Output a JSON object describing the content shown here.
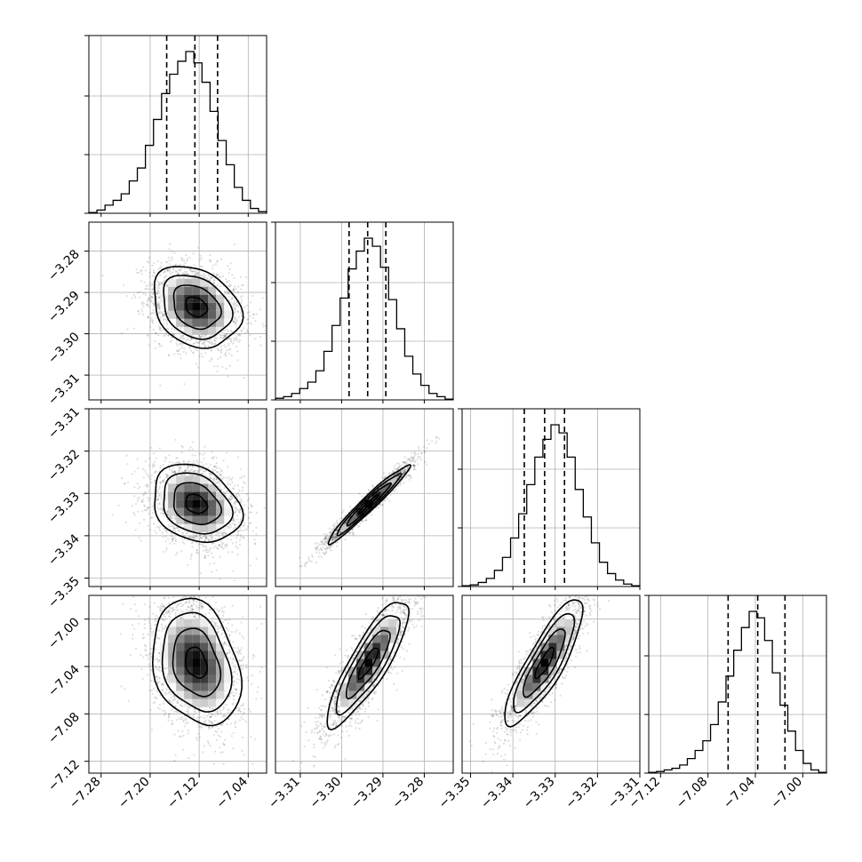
{
  "chart_data": {
    "type": "corner",
    "parameters": [
      {
        "index": 0,
        "range": [
          -7.3,
          -7.01
        ],
        "mean": -7.125,
        "sd": 0.035,
        "ticks": [
          -7.28,
          -7.2,
          -7.12,
          -7.04
        ],
        "tick_labels": [
          "−7.28",
          "−7.20",
          "−7.12",
          "−7.04"
        ],
        "quantiles": [
          -7.173,
          -7.127,
          -7.09
        ]
      },
      {
        "index": 1,
        "range": [
          -3.316,
          -3.273
        ],
        "mean": -3.2935,
        "sd": 0.0048,
        "ticks": [
          -3.31,
          -3.3,
          -3.29,
          -3.28
        ],
        "tick_labels": [
          "−3.31",
          "−3.30",
          "−3.29",
          "−3.28"
        ],
        "quantiles": [
          -3.2982,
          -3.2937,
          -3.2893
        ]
      },
      {
        "index": 2,
        "range": [
          -3.352,
          -3.31
        ],
        "mean": -3.3325,
        "sd": 0.0045,
        "ticks": [
          -3.35,
          -3.34,
          -3.33,
          -3.32,
          -3.31
        ],
        "tick_labels": [
          "−3.35",
          "−3.34",
          "−3.33",
          "−3.32",
          "−3.31"
        ],
        "quantiles": [
          -3.3373,
          -3.3325,
          -3.3278
        ]
      },
      {
        "index": 3,
        "range": [
          -7.13,
          -6.98
        ],
        "mean": -7.037,
        "sd": 0.026,
        "ticks": [
          -7.12,
          -7.08,
          -7.04,
          -7.0
        ],
        "tick_labels": [
          "−7.12",
          "−7.08",
          "−7.04",
          "−7.00"
        ],
        "quantiles": [
          -7.063,
          -7.038,
          -7.015
        ]
      }
    ],
    "correlations": [
      {
        "pair": [
          0,
          1
        ],
        "rho": -0.25
      },
      {
        "pair": [
          0,
          2
        ],
        "rho": -0.25
      },
      {
        "pair": [
          1,
          2
        ],
        "rho": 0.97
      },
      {
        "pair": [
          0,
          3
        ],
        "rho": -0.25
      },
      {
        "pair": [
          1,
          3
        ],
        "rho": 0.85
      },
      {
        "pair": [
          2,
          3
        ],
        "rho": 0.85
      }
    ],
    "histograms": [
      [
        0.005,
        0.02,
        0.05,
        0.08,
        0.12,
        0.2,
        0.28,
        0.42,
        0.58,
        0.74,
        0.86,
        0.94,
        1.0,
        0.93,
        0.81,
        0.63,
        0.45,
        0.3,
        0.16,
        0.08,
        0.03,
        0.01
      ],
      [
        0.01,
        0.02,
        0.04,
        0.07,
        0.11,
        0.18,
        0.3,
        0.46,
        0.63,
        0.81,
        0.92,
        1.0,
        0.95,
        0.82,
        0.62,
        0.44,
        0.27,
        0.16,
        0.09,
        0.04,
        0.02,
        0.005
      ],
      [
        0.005,
        0.01,
        0.025,
        0.05,
        0.1,
        0.18,
        0.3,
        0.45,
        0.63,
        0.8,
        0.91,
        1.0,
        0.95,
        0.8,
        0.6,
        0.43,
        0.27,
        0.15,
        0.08,
        0.04,
        0.015,
        0.005
      ],
      [
        0.005,
        0.01,
        0.02,
        0.03,
        0.05,
        0.09,
        0.14,
        0.2,
        0.3,
        0.44,
        0.6,
        0.76,
        0.9,
        1.0,
        0.96,
        0.82,
        0.62,
        0.42,
        0.26,
        0.14,
        0.06,
        0.02,
        0.005
      ]
    ],
    "grid": true,
    "histogram_style": "step",
    "contours": true,
    "scatter_samples": true
  }
}
